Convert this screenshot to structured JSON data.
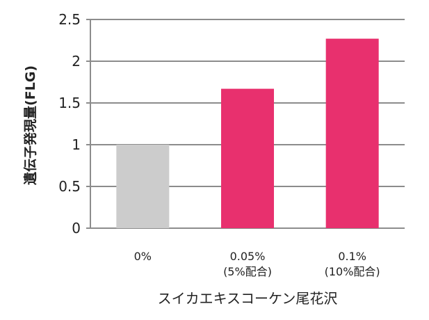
{
  "chart_data": {
    "type": "bar",
    "title": "",
    "xlabel": "スイカエキスコーケン尾花沢",
    "ylabel": "遺伝子発現量(FLG)",
    "ylim": [
      0,
      2.5
    ],
    "yticks": [
      "0",
      "0.5",
      "1",
      "1.5",
      "2",
      "2.5"
    ],
    "grid": true,
    "legend": "none",
    "categories": [
      {
        "line1": "0%",
        "line2": ""
      },
      {
        "line1": "0.05%",
        "line2": "(5%配合)"
      },
      {
        "line1": "0.1%",
        "line2": "(10%配合)"
      }
    ],
    "values": [
      1.0,
      1.67,
      2.27
    ],
    "bar_colors": [
      "#cccccc",
      "#e8306e",
      "#e8306e"
    ],
    "grid_color": "#8c8c8c",
    "axis_color": "#8c8c8c"
  }
}
